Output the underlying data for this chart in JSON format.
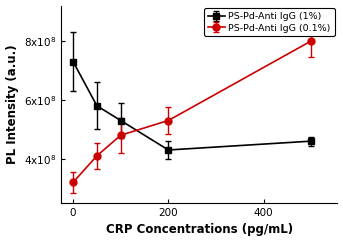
{
  "black_x": [
    0,
    50,
    100,
    200,
    500
  ],
  "black_y": [
    730000000.0,
    580000000.0,
    530000000.0,
    430000000.0,
    460000000.0
  ],
  "black_yerr": [
    100000000.0,
    80000000.0,
    60000000.0,
    30000000.0,
    15000000.0
  ],
  "red_x": [
    0,
    50,
    100,
    200,
    500
  ],
  "red_y": [
    320000000.0,
    410000000.0,
    480000000.0,
    530000000.0,
    800000000.0
  ],
  "red_yerr": [
    35000000.0,
    45000000.0,
    60000000.0,
    45000000.0,
    55000000.0
  ],
  "black_label": "PS-Pd-Anti IgG (1%)",
  "red_label": "PS-Pd-Anti IgG (0.1%)",
  "xlabel": "CRP Concentrations (pg/mL)",
  "ylabel": "PL Intensity (a.u.)",
  "xlim": [
    -25,
    555
  ],
  "ylim": [
    250000000.0,
    920000000.0
  ],
  "xticks": [
    0,
    200,
    400
  ],
  "yticks": [
    400000000.0,
    600000000.0,
    800000000.0
  ],
  "black_color": "#000000",
  "red_color": "#cc0000",
  "bg_color": "#ffffff"
}
